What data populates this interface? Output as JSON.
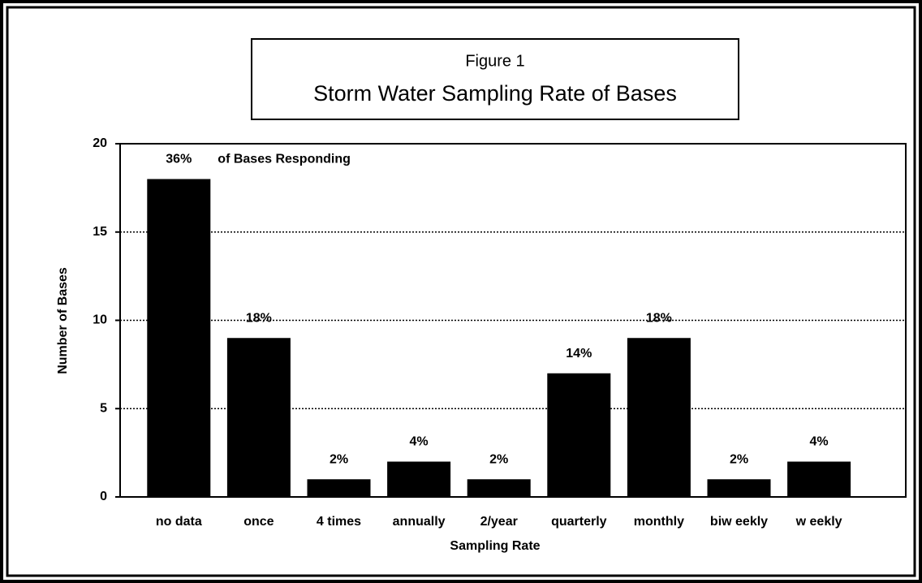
{
  "chart_data": {
    "type": "bar",
    "title": "Figure 1",
    "subtitle": "Storm Water Sampling Rate of Bases",
    "x_label": "Sampling Rate",
    "y_label": "Number of Bases",
    "categories": [
      "no data",
      "once",
      "4 times",
      "annually",
      "2/year",
      "quarterly",
      "monthly",
      "biw eekly",
      "w eekly"
    ],
    "values": [
      18,
      9,
      1,
      2,
      1,
      7,
      9,
      1,
      2
    ],
    "percent_labels": [
      "36%",
      "18%",
      "2%",
      "4%",
      "2%",
      "14%",
      "18%",
      "2%",
      "4%"
    ],
    "annotation": "of Bases Responding",
    "color": "#000000",
    "ylim": [
      0,
      20
    ],
    "yticks": [
      0,
      5,
      10,
      15,
      20
    ],
    "grid": true
  }
}
